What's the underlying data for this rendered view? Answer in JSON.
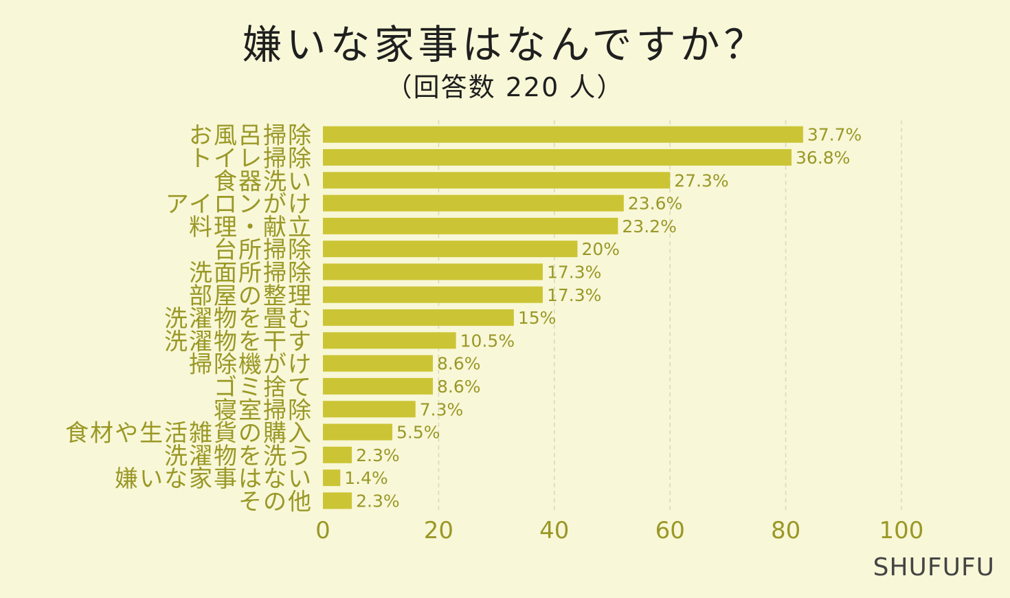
{
  "chart_data": {
    "type": "bar",
    "orientation": "horizontal",
    "title": "嫌いな家事はなんですか？",
    "subtitle": "（回答数 220 人）",
    "xlim": [
      0,
      100
    ],
    "xticks": [
      0,
      20,
      40,
      60,
      80,
      100
    ],
    "grid": true,
    "legend": "none",
    "categories": [
      "お風呂掃除",
      "トイレ掃除",
      "食器洗い",
      "アイロンがけ",
      "料理・献立",
      "台所掃除",
      "洗面所掃除",
      "部屋の整理",
      "洗濯物を畳む",
      "洗濯物を干す",
      "掃除機がけ",
      "ゴミ捨て",
      "寝室掃除",
      "食材や生活雑貨の購入",
      "洗濯物を洗う",
      "嫌いな家事はない",
      "その他"
    ],
    "values": [
      83,
      81,
      60,
      52,
      51,
      44,
      38,
      38,
      33,
      23,
      19,
      19,
      16,
      12,
      5,
      3,
      5
    ],
    "value_labels": [
      "37.7%",
      "36.8%",
      "27.3%",
      "23.6%",
      "23.2%",
      "20%",
      "17.3%",
      "17.3%",
      "15%",
      "10.5%",
      "8.6%",
      "8.6%",
      "7.3%",
      "5.5%",
      "2.3%",
      "1.4%",
      "2.3%"
    ],
    "colors": {
      "bar": "#cbc535",
      "text": "#9a9826",
      "grid": "#d9d7bf",
      "title": "#1f1f1f"
    }
  },
  "brand": "SHUFUFU"
}
